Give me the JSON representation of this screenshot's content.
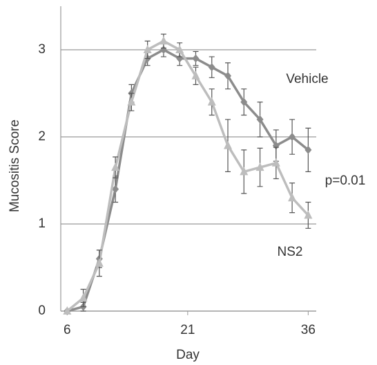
{
  "chart_data": {
    "type": "line",
    "xlabel": "Day",
    "ylabel": "Mucositis Score",
    "x": [
      6,
      8,
      10,
      12,
      14,
      16,
      18,
      20,
      22,
      24,
      26,
      28,
      30,
      32,
      34,
      36
    ],
    "series": [
      {
        "name": "Vehicle",
        "color": "#8c8c8c",
        "marker": "diamond",
        "values": [
          0,
          0.05,
          0.6,
          1.4,
          2.5,
          2.9,
          3.0,
          2.9,
          2.9,
          2.8,
          2.7,
          2.4,
          2.2,
          1.9,
          2.0,
          1.85
        ],
        "errors": [
          0,
          0.05,
          0.1,
          0.15,
          0.1,
          0.08,
          0.08,
          0.08,
          0.08,
          0.12,
          0.15,
          0.15,
          0.2,
          0.18,
          0.2,
          0.25
        ]
      },
      {
        "name": "NS2",
        "color": "#bdbdbd",
        "marker": "triangle",
        "values": [
          0,
          0.15,
          0.55,
          1.65,
          2.4,
          3.0,
          3.1,
          3.0,
          2.7,
          2.4,
          1.9,
          1.6,
          1.65,
          1.7,
          1.3,
          1.1
        ],
        "errors": [
          0,
          0.1,
          0.15,
          0.12,
          0.1,
          0.1,
          0.08,
          0.08,
          0.1,
          0.15,
          0.3,
          0.25,
          0.22,
          0.18,
          0.17,
          0.15
        ]
      }
    ],
    "annotations": [
      "p=0.01"
    ],
    "xlim": [
      5.2,
      37
    ],
    "xticks": [
      6,
      21,
      36
    ],
    "ylim": [
      0,
      3.5
    ],
    "yticks": [
      0,
      1,
      2,
      3
    ],
    "grid": true
  }
}
